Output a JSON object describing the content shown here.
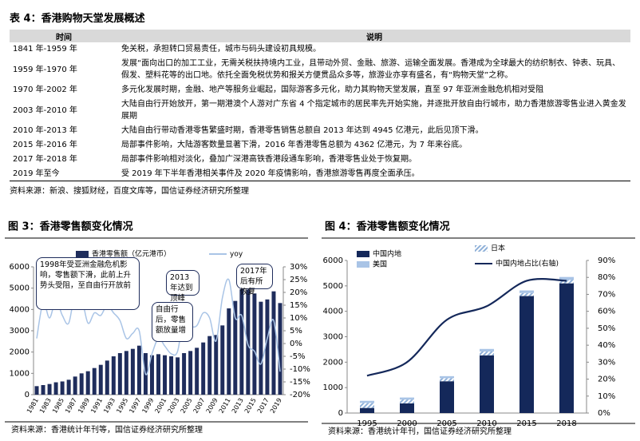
{
  "table": {
    "title": "表 4：香港购物天堂发展概述",
    "header": [
      "时间",
      "说明"
    ],
    "rows": [
      [
        "1841 年-1959 年",
        "免关税，承担转口贸易责任，城市与码头建设初具规模。"
      ],
      [
        "1959 年-1970 年",
        "发展“面向出口的加工工业，无需关税扶持境内工业，且带动外贸、金融、旅游、运输全面发展。香港成为全球最大的纺织制衣、钟表、玩具、假发、塑料花等的出口地。依托全面免税优势和报关方便贯品众多等，旅游业亦享有盛名，有“购物天堂”之称。"
      ],
      [
        "1970 年-2002 年",
        "多元化发展时期，金融、地产等服务业崛起，国际游客多元化，助力其购物天堂发展，直至 97 年亚洲金融危机相对受阻"
      ],
      [
        "2003 年-2010 年",
        "大陆自由行开始放开，第一期港澳个人游对广东省 4 个指定城市的居民率先开始实施，并逐批开放自由行城市，助力香港旅游零售业进入黄金发展期"
      ],
      [
        "2010 年-2013 年",
        "大陆自由行带动香港零售繁盛时期，香港零售销售总额自 2013 年达到 4945 亿港元，此后见顶下滑。"
      ],
      [
        "2015 年-2016 年",
        "局部事件影响，大陆游客数量显著下滑，2016 年香港零售总额为 4362 亿港元，为 7 年来谷底。"
      ],
      [
        "2017 年-2018 年",
        "局部事件影响相对淡化，叠加广深港高铁香港段通车影响，香港零售业处于恢复期。"
      ],
      [
        "2019 年至今",
        "受 2019 年下半年香港相关事件及 2020 年疫情影响，香港旅游零售再度全面承压。"
      ]
    ],
    "source": "资料来源：新浪、搜狐财经，百度文库等，国信证券经济研究所整理"
  },
  "chart_data": [
    {
      "type": "bar",
      "title": "图 3：香港零售额变化情况",
      "categories": [
        "1981",
        null,
        "1983",
        null,
        "1985",
        null,
        "1987",
        null,
        "1989",
        null,
        "1991",
        null,
        "1993",
        null,
        "1995",
        null,
        "1997",
        null,
        "1999",
        null,
        "2001",
        null,
        "2003",
        null,
        "2005",
        null,
        "2007",
        null,
        "2009",
        null,
        "2011",
        null,
        "2013",
        null,
        "2015",
        null,
        "2017",
        null,
        "2019"
      ],
      "series": [
        {
          "name": "香港零售额（亿元港币）",
          "color": "#1f2d5c",
          "values": [
            400,
            450,
            500,
            580,
            620,
            700,
            850,
            1000,
            1100,
            1250,
            1400,
            1600,
            1800,
            1950,
            2050,
            2150,
            2300,
            1950,
            1850,
            1900,
            1850,
            1800,
            1750,
            1950,
            2050,
            2200,
            2450,
            2750,
            2800,
            3250,
            4050,
            4400,
            4945,
            4930,
            4750,
            4362,
            4470,
            4850,
            4300
          ]
        },
        {
          "name": "yoy",
          "type": "line",
          "axis": "y2",
          "color": "#a9c4e6",
          "values": [
            2,
            16,
            10,
            17,
            11,
            8,
            20,
            18,
            8,
            12,
            11,
            15,
            12,
            9,
            2,
            4,
            5,
            -12,
            -4,
            2,
            -1,
            -4,
            -3,
            11,
            7,
            7,
            12,
            10,
            1,
            18,
            25,
            10,
            11,
            -0.5,
            -3,
            -8,
            2,
            9,
            -11
          ]
        }
      ],
      "ylim": [
        0,
        6000
      ],
      "yticks": [
        0,
        1000,
        2000,
        3000,
        4000,
        5000,
        6000
      ],
      "y2lim": [
        -20,
        30
      ],
      "y2ticks": [
        {
          "value": -20,
          "label": "-20%"
        },
        {
          "value": -15,
          "label": "-15%"
        },
        {
          "value": -10,
          "label": "-10%"
        },
        {
          "value": -5,
          "label": "-5%"
        },
        {
          "value": 0,
          "label": "0%"
        },
        {
          "value": 5,
          "label": "5%"
        },
        {
          "value": 10,
          "label": "10%"
        },
        {
          "value": 15,
          "label": "15%"
        },
        {
          "value": 20,
          "label": "20%"
        },
        {
          "value": 25,
          "label": "25%"
        },
        {
          "value": 30,
          "label": "30%"
        }
      ],
      "annotations": [
        "1998年受亚洲金融危机影响，零售额下滑，此前上升势头受阻，至自由行开放前",
        "自由行后，零售额放量增",
        "2013年达到顶峰",
        "2017年后有所恢复"
      ],
      "source": "资料来源：香港统计年刊等，国信证券经济研究所整理"
    },
    {
      "type": "bar",
      "stacked": true,
      "title": "图 4：香港零售额变化情况",
      "categories": [
        "1995",
        "2000",
        "2005",
        "2010",
        "2015",
        "2018"
      ],
      "series": [
        {
          "name": "中国内地",
          "color": "#14285a",
          "values": [
            200,
            380,
            1250,
            2270,
            4600,
            5100
          ]
        },
        {
          "name": "日本",
          "color": "#8fb0d8",
          "pattern": "hatch",
          "values": [
            200,
            150,
            120,
            150,
            120,
            130
          ]
        },
        {
          "name": "美国",
          "color": "#a9c4e6",
          "values": [
            80,
            80,
            80,
            100,
            100,
            120
          ]
        },
        {
          "name": "中国内地占比(右轴)",
          "type": "line",
          "axis": "y2",
          "color": "#14285a",
          "values": [
            22,
            30,
            55,
            63,
            78,
            78
          ]
        }
      ],
      "ylim": [
        0,
        6000
      ],
      "yticks": [
        0,
        1000,
        2000,
        3000,
        4000,
        5000,
        6000
      ],
      "y2lim": [
        0,
        90
      ],
      "y2ticks": [
        {
          "value": 0,
          "label": "0%"
        },
        {
          "value": 10,
          "label": "10%"
        },
        {
          "value": 20,
          "label": "20%"
        },
        {
          "value": 30,
          "label": "30%"
        },
        {
          "value": 40,
          "label": "40%"
        },
        {
          "value": 50,
          "label": "50%"
        },
        {
          "value": 60,
          "label": "60%"
        },
        {
          "value": 70,
          "label": "70%"
        },
        {
          "value": 80,
          "label": "80%"
        },
        {
          "value": 90,
          "label": "90%"
        }
      ],
      "source": "资料来源：香港统计年刊，国信证券经济研究所整理"
    }
  ]
}
